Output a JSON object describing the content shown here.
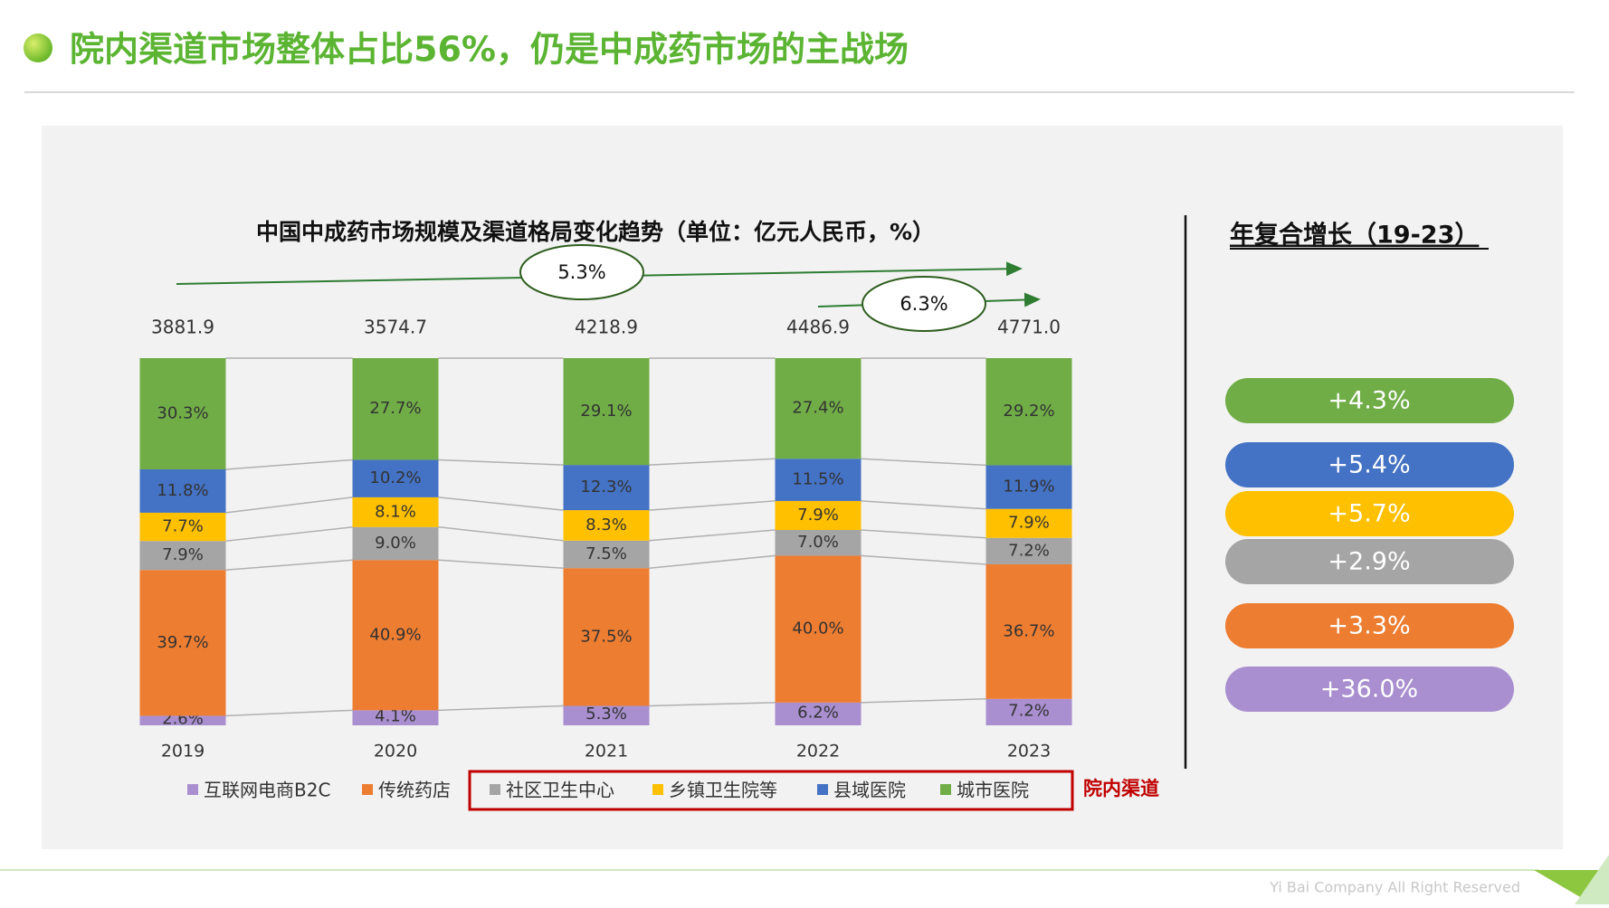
{
  "chart_data": {
    "type": "stacked_bar",
    "page_title": "院内渠道市场整体占比56%，仍是中成药市场的主战场",
    "title": "中国中成药市场规模及渠道格局变化趋势（单位：亿元人民币，%）",
    "categories": [
      "2019",
      "2020",
      "2021",
      "2022",
      "2023"
    ],
    "totals": {
      "values": [
        3881.9,
        3574.7,
        4218.9,
        4486.9,
        4771.0
      ],
      "value_labels": [
        "3881.9",
        "3574.7",
        "4218.9",
        "4486.9",
        "4771.0"
      ]
    },
    "series": [
      {
        "name": "互联网电商B2C",
        "color": "#a98fd0",
        "values": [
          2.6,
          4.1,
          5.3,
          6.2,
          7.2
        ],
        "value_labels": [
          "2.6%",
          "4.1%",
          "5.3%",
          "6.2%",
          "7.2%"
        ]
      },
      {
        "name": "传统药店",
        "color": "#ed7d31",
        "values": [
          39.7,
          40.9,
          37.5,
          40.0,
          36.7
        ],
        "value_labels": [
          "39.7%",
          "40.9%",
          "37.5%",
          "40.0%",
          "36.7%"
        ]
      },
      {
        "name": "社区卫生中心",
        "color": "#a5a5a5",
        "values": [
          7.9,
          9.0,
          7.5,
          7.0,
          7.2
        ],
        "value_labels": [
          "7.9%",
          "9.0%",
          "7.5%",
          "7.0%",
          "7.2%"
        ]
      },
      {
        "name": "乡镇卫生院等",
        "color": "#ffc000",
        "values": [
          7.7,
          8.1,
          8.3,
          7.9,
          7.9
        ],
        "value_labels": [
          "7.7%",
          "8.1%",
          "8.3%",
          "7.9%",
          "7.9%"
        ]
      },
      {
        "name": "县域医院",
        "color": "#4472c4",
        "values": [
          11.8,
          10.2,
          12.3,
          11.5,
          11.9
        ],
        "value_labels": [
          "11.8%",
          "10.2%",
          "12.3%",
          "11.5%",
          "11.9%"
        ]
      },
      {
        "name": "城市医院",
        "color": "#70ad47",
        "values": [
          30.3,
          27.7,
          29.1,
          27.4,
          29.2
        ],
        "value_labels": [
          "30.3%",
          "27.7%",
          "29.1%",
          "27.4%",
          "29.2%"
        ]
      }
    ],
    "group_label": "院内渠道",
    "growth_arrows": [
      "5.3%",
      "6.3%"
    ],
    "growth_panel": {
      "title": "年复合增长（19-23）",
      "items": [
        {
          "label": "+4.3%",
          "color": "#70ad47"
        },
        {
          "label": "+5.4%",
          "color": "#4472c4"
        },
        {
          "label": "+5.7%",
          "color": "#ffc000"
        },
        {
          "label": "+2.9%",
          "color": "#a5a5a5"
        },
        {
          "label": "+3.3%",
          "color": "#ed7d31"
        },
        {
          "label": "+36.0%",
          "color": "#a98fd0"
        }
      ]
    },
    "footer": "Yi Bai Company All Right Reserved"
  }
}
